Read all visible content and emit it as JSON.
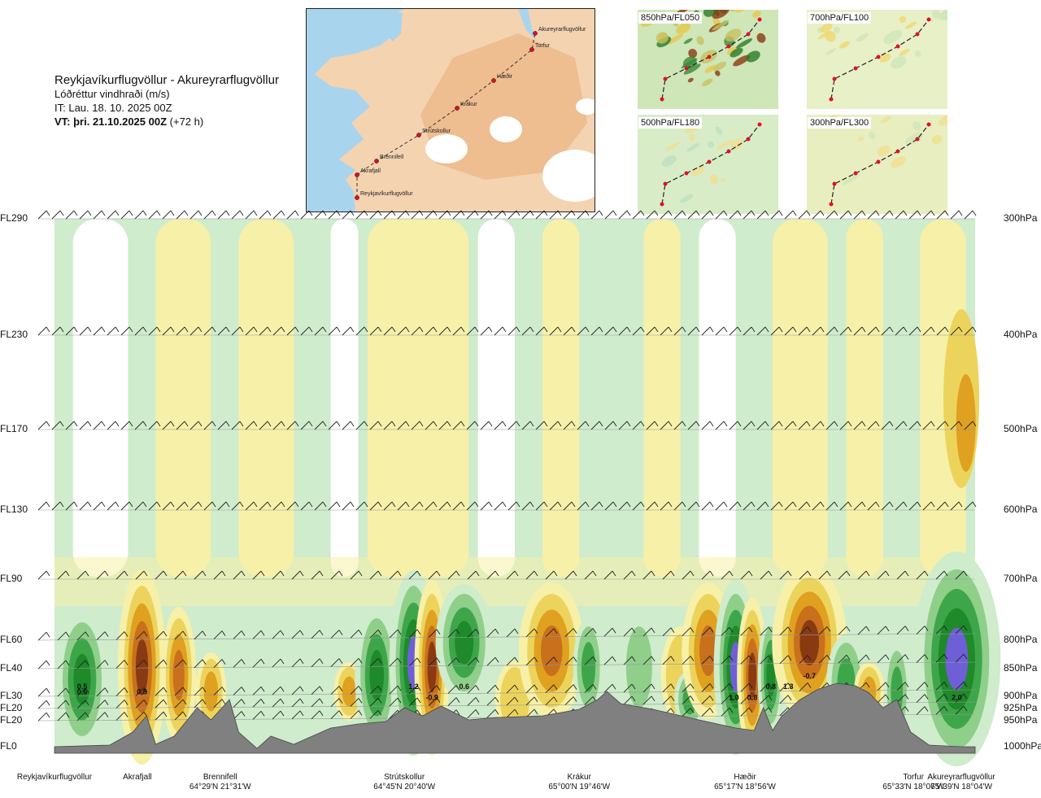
{
  "header": {
    "route": "Reykjavíkurflugvöllur - Akureyrarflugvöllur",
    "parameter": "Lóðréttur vindhraði (m/s)",
    "issue_time": "IT: Lau. 18. 10. 2025 00Z",
    "valid_time_label": "VT: þri. 21.10.2025 00Z",
    "lead_time": "(+72 h)"
  },
  "route_map": {
    "waypoints": [
      "Reykjavíkurflugvöllur",
      "Akrafjall",
      "Brennifell",
      "Strútskollur",
      "Krákur",
      "Hæðir",
      "Torfur",
      "Akureyrarflugvöllur"
    ]
  },
  "mini_maps": [
    {
      "id": "850",
      "label": "850hPa/FL050"
    },
    {
      "id": "700",
      "label": "700hPa/FL100"
    },
    {
      "id": "500",
      "label": "500hPa/FL180"
    },
    {
      "id": "300",
      "label": "300hPa/FL300"
    }
  ],
  "colors": {
    "strong_up": "#6f5fd6",
    "up3": "#1e8a2a",
    "up2": "#3ea64a",
    "up1": "#8fcf8a",
    "weak_up": "#cfeccd",
    "near_zero": "#ffffff",
    "weak_down": "#f7f0a8",
    "down1": "#ecd45c",
    "down2": "#e0a020",
    "down3": "#c8701c",
    "strong_down": "#8a3a12",
    "terrain": "#808080",
    "sea": "#a9d4ee",
    "land": "#f4c9a0"
  },
  "chart_data": {
    "type": "heatmap",
    "title": "Lóðréttur vindhraði (m/s)",
    "x_axis": "distance along route",
    "x_range": [
      0,
      1
    ],
    "flight_levels": [
      {
        "label": "FL290",
        "pressure": "300hPa"
      },
      {
        "label": "FL230",
        "pressure": "400hPa"
      },
      {
        "label": "FL170",
        "pressure": "500hPa"
      },
      {
        "label": "FL130",
        "pressure": "600hPa"
      },
      {
        "label": "FL90",
        "pressure": "700hPa"
      },
      {
        "label": "FL60",
        "pressure": "800hPa"
      },
      {
        "label": "FL40",
        "pressure": "850hPa"
      },
      {
        "label": "FL30",
        "pressure": "900hPa"
      },
      {
        "label": "FL20",
        "pressure": "925hPa"
      },
      {
        "label": "FL20",
        "pressure": "950hPa"
      },
      {
        "label": "FL0",
        "pressure": "1000hPa"
      }
    ],
    "locations": [
      {
        "name": "Reykjavíkurflugvöllur",
        "coord": "",
        "pos": 0.0
      },
      {
        "name": "Akrafjall",
        "coord": "",
        "pos": 0.09
      },
      {
        "name": "Brennifell",
        "coord": "64°29'N 21°31'W",
        "pos": 0.18
      },
      {
        "name": "Strútskollur",
        "coord": "64°45'N 20°40'W",
        "pos": 0.38
      },
      {
        "name": "Krákur",
        "coord": "65°00'N 19°46'W",
        "pos": 0.57
      },
      {
        "name": "Hæðir",
        "coord": "65°17'N 18°56'W",
        "pos": 0.75
      },
      {
        "name": "Torfur",
        "coord": "65°33'N 18°07'W",
        "pos": 0.933
      },
      {
        "name": "Akureyrarflugvöllur",
        "coord": "65°39'N 18°04'W",
        "pos": 0.985
      }
    ],
    "value_labels": [
      {
        "text": "0.5",
        "pos": 0.03,
        "level": 0.88
      },
      {
        "text": "0.6",
        "pos": 0.03,
        "level": 0.89
      },
      {
        "text": "0.8",
        "pos": 0.095,
        "level": 0.89
      },
      {
        "text": "1.2",
        "pos": 0.39,
        "level": 0.88
      },
      {
        "text": "0.6",
        "pos": 0.445,
        "level": 0.88
      },
      {
        "text": "-0.9",
        "pos": 0.41,
        "level": 0.9
      },
      {
        "text": "1.0",
        "pos": 0.738,
        "level": 0.9
      },
      {
        "text": "0.8",
        "pos": 0.758,
        "level": 0.9
      },
      {
        "text": "0.8",
        "pos": 0.778,
        "level": 0.88
      },
      {
        "text": "1.3",
        "pos": 0.797,
        "level": 0.88
      },
      {
        "text": "-0.7",
        "pos": 0.82,
        "level": 0.86
      },
      {
        "text": "2.0",
        "pos": 0.98,
        "level": 0.9
      }
    ]
  }
}
